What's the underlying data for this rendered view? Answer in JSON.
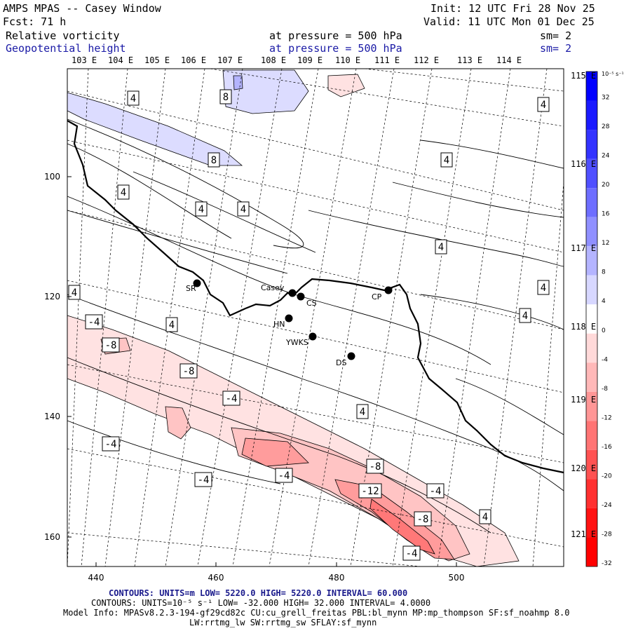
{
  "header": {
    "model_window": "AMPS MPAS -- Casey Window",
    "init": "Init: 12 UTC Fri 28 Nov 25",
    "fcst": "Fcst:   71 h",
    "valid": "Valid: 11 UTC Mon 01 Dec 25",
    "field1_name": "Relative vorticity",
    "field1_level": "at pressure =  500 hPa",
    "field1_sm": "sm= 2",
    "field2_name": "Geopotential height",
    "field2_level": "at pressure =  500 hPa",
    "field2_sm": "sm= 2"
  },
  "longitude_labels_top": [
    "103 E",
    "104 E",
    "105 E",
    "106 E",
    "107 E",
    "108 E",
    "109 E",
    "110 E",
    "111 E",
    "112 E",
    "113 E",
    "114 E"
  ],
  "longitude_labels_right": [
    "115 E",
    "116 E",
    "117 E",
    "118 E",
    "119 E",
    "120 E",
    "121 E"
  ],
  "x_axis_ticks": [
    "440",
    "460",
    "480",
    "500"
  ],
  "y_axis_ticks": [
    "100",
    "120",
    "140",
    "160"
  ],
  "stations": [
    {
      "name": "SR",
      "kind": "dot"
    },
    {
      "name": "Casey",
      "kind": "dot"
    },
    {
      "name": "CS",
      "kind": "dot"
    },
    {
      "name": "CP",
      "kind": "dot"
    },
    {
      "name": "HN",
      "kind": "dot"
    },
    {
      "name": "YWKS",
      "kind": "dot"
    },
    {
      "name": "DS",
      "kind": "dot"
    }
  ],
  "contour_labels": [
    "4",
    "8",
    "-4",
    "-8",
    "-12"
  ],
  "colorbar": {
    "units": "10⁻⁵ s⁻¹",
    "labels": [
      "32",
      "28",
      "24",
      "20",
      "16",
      "12",
      "8",
      "4",
      "0",
      "-4",
      "-8",
      "-12",
      "-16",
      "-20",
      "-24",
      "-28",
      "-32"
    ],
    "colors": [
      "#0000ff",
      "#1a1aff",
      "#3333ff",
      "#5050ff",
      "#6e6eff",
      "#9090ff",
      "#b4b4ff",
      "#d7d7ff",
      "#ffffff",
      "#ffd9d9",
      "#ffb8b8",
      "#ff9696",
      "#ff7474",
      "#ff5252",
      "#ff3030",
      "#ff1212",
      "#ff0000"
    ]
  },
  "footer": {
    "contours1": "CONTOURS:  UNITS=m  LOW=  5220.0        HIGH=  5220.0        INTERVAL=   60.000",
    "contours2": "CONTOURS:  UNITS=10⁻⁵ s⁻¹  LOW= -32.000       HIGH=  32.000       INTERVAL=   4.0000",
    "model_info": "Model Info: MPASv8.2.3-194-gf29cd82c CU:cu_grell_freitas PBL:bl_mynn MP:mp_thompson SF:sf_noahmp 8.0",
    "model_info2": "LW:rrtmg_lw SW:rrtmg_sw SFLAY:sf_mynn"
  }
}
